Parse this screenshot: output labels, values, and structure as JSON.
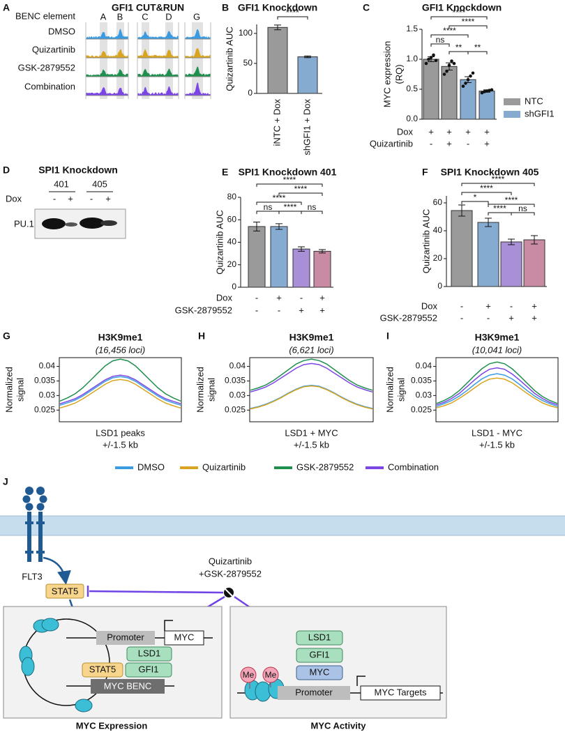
{
  "panel_a": {
    "label": "A",
    "title": "GFI1 CUT&RUN",
    "row_header": "BENC element",
    "columns": [
      "A",
      "B",
      "C",
      "D",
      "G"
    ],
    "rows": [
      {
        "name": "DMSO",
        "color": "#3a9be0"
      },
      {
        "name": "Quizartinib",
        "color": "#d9a520"
      },
      {
        "name": "GSK-2879552",
        "color": "#1f8f4e"
      },
      {
        "name": "Combination",
        "color": "#7b45e6"
      }
    ]
  },
  "panel_d": {
    "label": "D",
    "title": "SPI1 Knockdown",
    "lines": [
      "401",
      "405"
    ],
    "dox_label": "Dox",
    "dox": [
      "-",
      "+",
      "-",
      "+"
    ],
    "band": "PU.1"
  },
  "chart_data": [
    {
      "type": "bar",
      "label": "B",
      "title": "GFI1 Knockdown",
      "ylabel": "Quizartinib AUC",
      "categories": [
        "iNTC + Dox",
        "shGFI1 + Dox"
      ],
      "values": [
        110,
        61
      ],
      "errors": [
        4,
        1.5
      ],
      "colors": [
        "#9a9a9a",
        "#86abd1"
      ],
      "ylim": [
        0,
        115
      ],
      "yticks": [
        0,
        50,
        100
      ],
      "significance": [
        "****"
      ]
    },
    {
      "type": "bar",
      "label": "C",
      "title": "GFI1 Knockdown",
      "ylabel": [
        "MYC expression",
        "(RQ)"
      ],
      "values": [
        1.0,
        0.88,
        0.66,
        0.47
      ],
      "errors": [
        0.04,
        0.06,
        0.05,
        0.02
      ],
      "points": [
        [
          0.93,
          1.0,
          1.03,
          1.07,
          0.98
        ],
        [
          0.75,
          0.8,
          0.9,
          0.97,
          0.93
        ],
        [
          0.55,
          0.6,
          0.66,
          0.72,
          0.77
        ],
        [
          0.44,
          0.46,
          0.47,
          0.48,
          0.49
        ]
      ],
      "colors": [
        "#9a9a9a",
        "#9a9a9a",
        "#86abd1",
        "#86abd1"
      ],
      "ylim": [
        0,
        1.5
      ],
      "yticks": [
        {
          "value": 0,
          "label": "0.0"
        },
        0.5,
        {
          "value": 1,
          "label": "1.0"
        },
        1.5
      ],
      "legend": [
        {
          "name": "NTC",
          "color": "#9a9a9a"
        },
        {
          "name": "shGFI1",
          "color": "#86abd1"
        }
      ],
      "conditions": [
        {
          "name": "Dox",
          "values": [
            "+",
            "+",
            "+",
            "+"
          ]
        },
        {
          "name": "Quizartinib",
          "values": [
            "-",
            "+",
            "-",
            "+"
          ]
        }
      ],
      "significance": [
        "****",
        "****",
        "****",
        "ns",
        "**",
        "**"
      ]
    },
    {
      "type": "bar",
      "label": "E",
      "title": "SPI1 Knockdown 401",
      "ylabel": "Quizartinib AUC",
      "values": [
        54,
        54,
        34,
        32
      ],
      "errors": [
        4,
        2.5,
        2,
        1.5
      ],
      "colors": [
        "#9a9a9a",
        "#86abd1",
        "#a88fd6",
        "#c98aa3"
      ],
      "ylim": [
        0,
        80
      ],
      "yticks": [
        0,
        20,
        40,
        60,
        80
      ],
      "conditions": [
        {
          "name": "Dox",
          "values": [
            "-",
            "+",
            "-",
            "+"
          ]
        },
        {
          "name": "GSK-2879552",
          "values": [
            "-",
            "-",
            "+",
            "+"
          ]
        }
      ],
      "significance": [
        "****",
        "****",
        "****",
        "ns",
        "****",
        "ns"
      ]
    },
    {
      "type": "bar",
      "label": "F",
      "title": "SPI1 Knockdown 405",
      "ylabel": "Quizartinib AUC",
      "values": [
        54.5,
        46,
        32,
        33.5
      ],
      "errors": [
        4,
        3,
        2,
        3
      ],
      "colors": [
        "#9a9a9a",
        "#86abd1",
        "#a88fd6",
        "#c98aa3"
      ],
      "ylim": [
        0,
        65
      ],
      "yticks": [
        0,
        20,
        40,
        60
      ],
      "conditions": [
        {
          "name": "Dox",
          "values": [
            "-",
            "+",
            "-",
            "+"
          ]
        },
        {
          "name": "GSK-2879552",
          "values": [
            "-",
            "-",
            "+",
            "+"
          ]
        }
      ],
      "significance": [
        "****",
        "****",
        "*",
        "****",
        "****",
        "ns"
      ]
    },
    {
      "type": "line",
      "label": "G",
      "title": "H3K9me1",
      "subtitle": "(16,456 loci)",
      "ylabel": [
        "Normalized",
        "signal"
      ],
      "xlabel": [
        "LSD1 peaks",
        "+/-1.5 kb"
      ],
      "ylim": [
        0.021,
        0.043
      ],
      "yticks": [
        0.025,
        0.03,
        0.035,
        0.04
      ],
      "series": [
        {
          "values": [
            0.0267,
            0.0275,
            0.0284,
            0.0298,
            0.0315,
            0.0332,
            0.0349,
            0.0361,
            0.0365,
            0.0361,
            0.0349,
            0.0332,
            0.0315,
            0.0298,
            0.0284,
            0.0275,
            0.0267
          ]
        },
        {
          "values": [
            0.0257,
            0.0265,
            0.0274,
            0.0288,
            0.0305,
            0.0322,
            0.0339,
            0.0351,
            0.0355,
            0.0351,
            0.0339,
            0.0322,
            0.0305,
            0.0288,
            0.0274,
            0.0265,
            0.0257
          ]
        },
        {
          "values": [
            0.0281,
            0.0292,
            0.0306,
            0.0326,
            0.0351,
            0.0377,
            0.0402,
            0.0419,
            0.0425,
            0.0419,
            0.0402,
            0.0377,
            0.0351,
            0.0326,
            0.0306,
            0.0292,
            0.0281
          ]
        },
        {
          "values": [
            0.0272,
            0.028,
            0.0289,
            0.0303,
            0.032,
            0.0337,
            0.0354,
            0.0366,
            0.037,
            0.0366,
            0.0354,
            0.0337,
            0.032,
            0.0303,
            0.0289,
            0.028,
            0.0272
          ]
        }
      ]
    },
    {
      "type": "line",
      "label": "H",
      "title": "H3K9me1",
      "subtitle": "(6,621 loci)",
      "ylabel": [
        "Normalized",
        "signal"
      ],
      "xlabel": [
        "LSD1 + MYC",
        "+/-1.5 kb"
      ],
      "ylim": [
        0.021,
        0.043
      ],
      "yticks": [
        0.025,
        0.03,
        0.035,
        0.04
      ],
      "series": [
        {
          "values": [
            0.0256,
            0.0262,
            0.027,
            0.0281,
            0.0294,
            0.0309,
            0.0322,
            0.0332,
            0.0335,
            0.0332,
            0.0322,
            0.0309,
            0.0294,
            0.0281,
            0.027,
            0.0262,
            0.0256
          ]
        },
        {
          "values": [
            0.0254,
            0.026,
            0.0268,
            0.0279,
            0.0292,
            0.0307,
            0.032,
            0.033,
            0.0333,
            0.033,
            0.032,
            0.0307,
            0.0292,
            0.0279,
            0.0268,
            0.026,
            0.0254
          ]
        },
        {
          "values": [
            0.0318,
            0.0326,
            0.0336,
            0.0351,
            0.037,
            0.0389,
            0.0408,
            0.042,
            0.0425,
            0.042,
            0.0408,
            0.0389,
            0.037,
            0.0351,
            0.0336,
            0.0326,
            0.0318
          ]
        },
        {
          "values": [
            0.0312,
            0.032,
            0.0329,
            0.0343,
            0.036,
            0.0377,
            0.0394,
            0.0406,
            0.041,
            0.0406,
            0.0394,
            0.0377,
            0.036,
            0.0343,
            0.0329,
            0.032,
            0.0312
          ]
        }
      ]
    },
    {
      "type": "line",
      "label": "I",
      "title": "H3K9me1",
      "subtitle": "(10,041 loci)",
      "ylabel": [
        "Normalized",
        "signal"
      ],
      "xlabel": [
        "LSD1 - MYC",
        "+/-1.5 kb"
      ],
      "ylim": [
        0.021,
        0.043
      ],
      "yticks": [
        0.025,
        0.03,
        0.035,
        0.04
      ],
      "series": [
        {
          "values": [
            0.0263,
            0.0272,
            0.0283,
            0.0298,
            0.0317,
            0.0338,
            0.0357,
            0.037,
            0.0375,
            0.037,
            0.0357,
            0.0338,
            0.0317,
            0.0298,
            0.0283,
            0.0272,
            0.0263
          ]
        },
        {
          "values": [
            0.0258,
            0.0265,
            0.0275,
            0.029,
            0.0307,
            0.0326,
            0.0344,
            0.0356,
            0.036,
            0.0356,
            0.0344,
            0.0326,
            0.0307,
            0.029,
            0.0275,
            0.0265,
            0.0258
          ]
        },
        {
          "values": [
            0.0273,
            0.0283,
            0.0297,
            0.0317,
            0.0342,
            0.0368,
            0.0392,
            0.0409,
            0.0415,
            0.0409,
            0.0392,
            0.0368,
            0.0342,
            0.0317,
            0.0297,
            0.0283,
            0.0273
          ]
        },
        {
          "values": [
            0.0268,
            0.0277,
            0.029,
            0.0307,
            0.033,
            0.0353,
            0.0374,
            0.039,
            0.0395,
            0.039,
            0.0374,
            0.0353,
            0.033,
            0.0307,
            0.029,
            0.0277,
            0.0268
          ]
        }
      ]
    }
  ],
  "legend_ghi": [
    {
      "name": "DMSO",
      "color": "#3a9be0"
    },
    {
      "name": "Quizartinib",
      "color": "#d9a520"
    },
    {
      "name": "GSK-2879552",
      "color": "#1f8f4e"
    },
    {
      "name": "Combination",
      "color": "#7b45e6"
    }
  ],
  "panel_j": {
    "label": "J",
    "receptor": "FLT3",
    "stat5": "STAT5",
    "drug": [
      "Quizartinib",
      "+GSK-2879552"
    ],
    "left": {
      "promoter": "Promoter",
      "gene": "MYC",
      "lsd1": "LSD1",
      "stat5": "STAT5",
      "gfi1": "GFI1",
      "enhancer": "MYC BENC",
      "caption": "MYC Expression"
    },
    "right": {
      "me": [
        "Me",
        "Me"
      ],
      "lsd1": "LSD1",
      "gfi1": "GFI1",
      "myc": "MYC",
      "promoter": "Promoter",
      "targets": "MYC Targets",
      "caption": "MYC Activity"
    }
  }
}
